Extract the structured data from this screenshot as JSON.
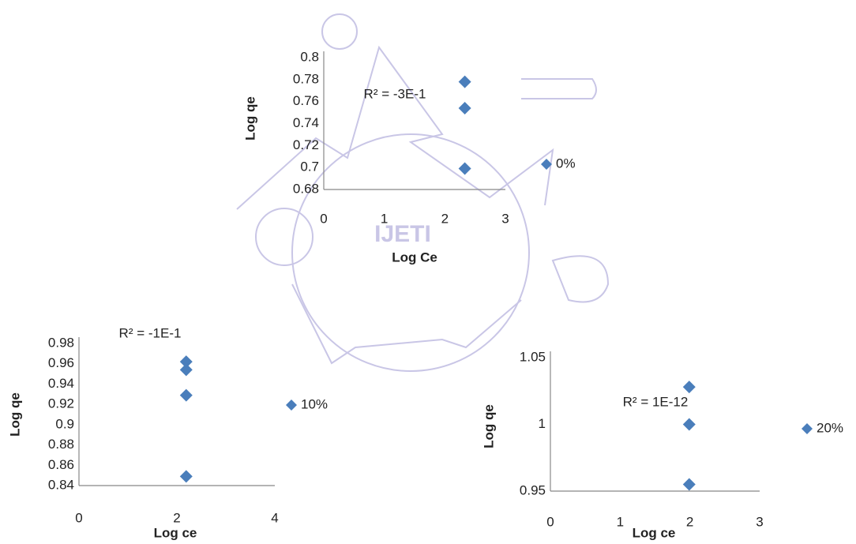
{
  "watermark": "IJETI",
  "chart_data": [
    {
      "type": "scatter",
      "annotation": "R² = -3E-1",
      "x_label": "Log Ce",
      "y_label": "Log qe",
      "series": [
        {
          "name": "0%",
          "color": "#4a7ebb",
          "x": [
            2.33,
            2.33,
            2.33
          ],
          "values": [
            0.778,
            0.754,
            0.699
          ]
        }
      ],
      "xlim": [
        0,
        3
      ],
      "xticks": [
        0,
        1,
        2,
        3
      ],
      "ylim": [
        0.68,
        0.8
      ],
      "yticks": [
        0.68,
        0.7,
        0.72,
        0.74,
        0.76,
        0.78,
        0.8
      ],
      "grid": false
    },
    {
      "type": "scatter",
      "annotation": "R² = -1E-1",
      "x_label": "Log ce",
      "y_label": "Log qe",
      "series": [
        {
          "name": "10%",
          "color": "#4a7ebb",
          "x": [
            2.19,
            2.19,
            2.19,
            2.19
          ],
          "values": [
            0.962,
            0.954,
            0.929,
            0.849
          ]
        }
      ],
      "xlim": [
        0,
        4
      ],
      "xticks": [
        0,
        2,
        4
      ],
      "ylim": [
        0.84,
        0.98
      ],
      "yticks": [
        0.84,
        0.86,
        0.88,
        0.9,
        0.92,
        0.94,
        0.96,
        0.98
      ],
      "grid": false
    },
    {
      "type": "scatter",
      "annotation": "R² = 1E-12",
      "x_label": "Log ce",
      "y_label": "Log qe",
      "series": [
        {
          "name": "20%",
          "color": "#4a7ebb",
          "x": [
            1.99,
            1.99,
            1.99
          ],
          "values": [
            1.028,
            1.0,
            0.955
          ]
        }
      ],
      "xlim": [
        0,
        3
      ],
      "xticks": [
        0,
        1,
        2,
        3
      ],
      "ylim": [
        0.95,
        1.05
      ],
      "yticks": [
        0.95,
        1,
        1.05
      ],
      "grid": false
    }
  ]
}
